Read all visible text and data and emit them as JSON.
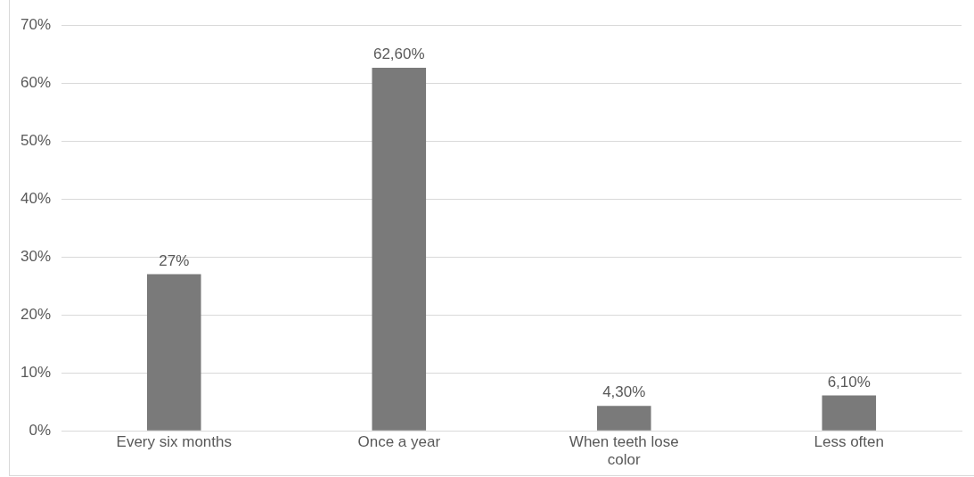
{
  "chart_data": {
    "type": "bar",
    "categories": [
      "Every six months",
      "Once a year",
      "When teeth lose color",
      "Less often"
    ],
    "values": [
      27,
      62.6,
      4.3,
      6.1
    ],
    "value_labels": [
      "27%",
      "62,60%",
      "4,30%",
      "6,10%"
    ],
    "color": "#7a7a7a",
    "ylim": [
      0,
      70
    ],
    "yticks": [
      {
        "value": 0,
        "label": "0%"
      },
      {
        "value": 10,
        "label": "10%"
      },
      {
        "value": 20,
        "label": "20%"
      },
      {
        "value": 30,
        "label": "30%"
      },
      {
        "value": 40,
        "label": "40%"
      },
      {
        "value": 50,
        "label": "50%"
      },
      {
        "value": 60,
        "label": "60%"
      },
      {
        "value": 70,
        "label": "70%"
      }
    ],
    "grid": "y",
    "legend": false
  }
}
